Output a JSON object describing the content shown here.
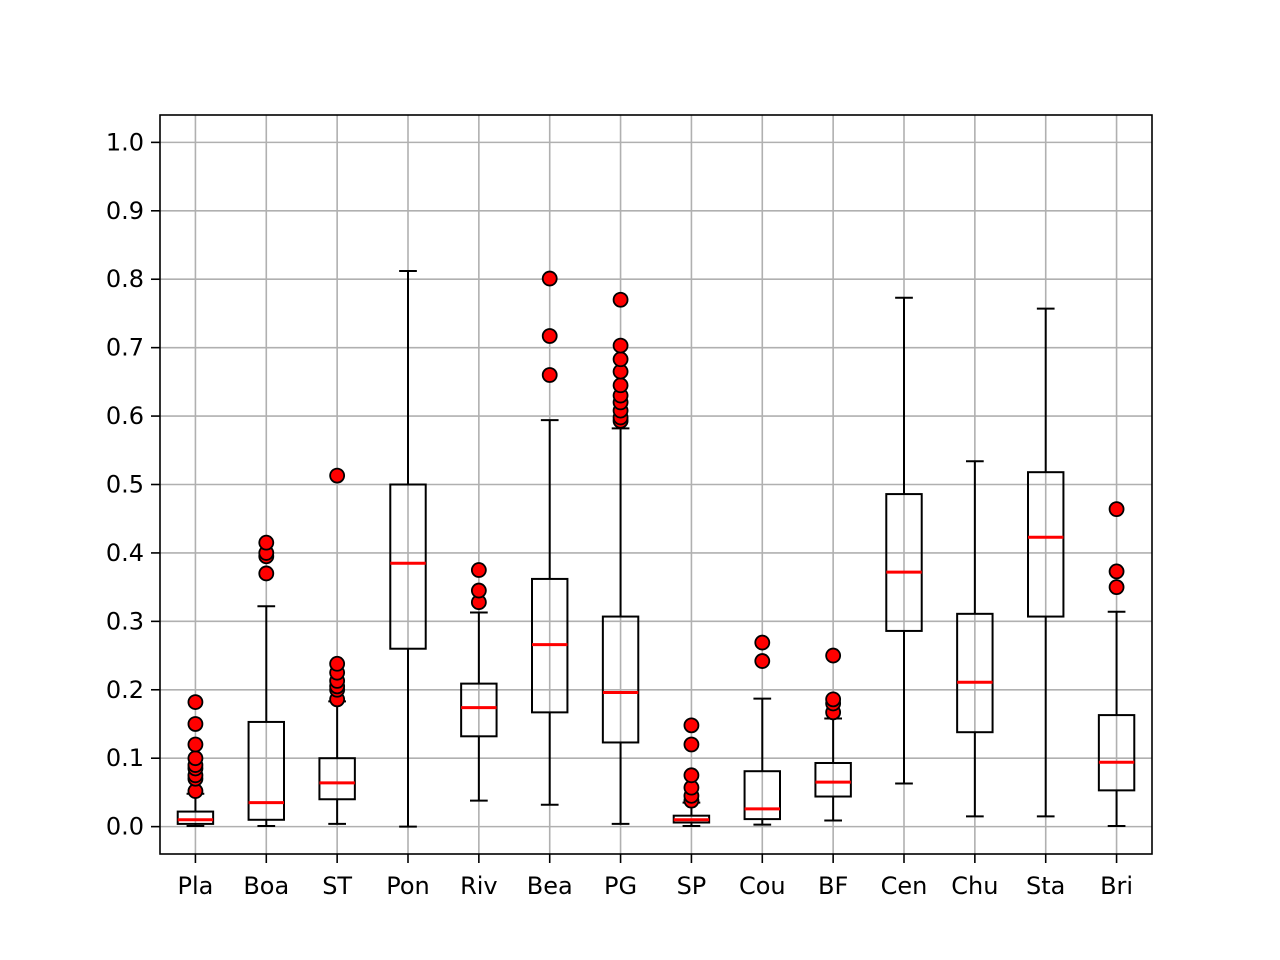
{
  "chart_data": {
    "type": "boxplot",
    "title": "",
    "xlabel": "",
    "ylabel": "",
    "ylim": [
      -0.04,
      1.04
    ],
    "grid": true,
    "yticks": [
      0.0,
      0.1,
      0.2,
      0.3,
      0.4,
      0.5,
      0.6,
      0.7,
      0.8,
      0.9,
      1.0
    ],
    "ytick_labels": [
      "0.0",
      "0.1",
      "0.2",
      "0.3",
      "0.4",
      "0.5",
      "0.6",
      "0.7",
      "0.8",
      "0.9",
      "1.0"
    ],
    "categories": [
      "Pla",
      "Boa",
      "ST",
      "Pon",
      "Riv",
      "Bea",
      "PG",
      "SP",
      "Cou",
      "BF",
      "Cen",
      "Chu",
      "Sta",
      "Bri"
    ],
    "boxes": [
      {
        "whisker_low": 0.001,
        "q1": 0.004,
        "median": 0.01,
        "q3": 0.022,
        "whisker_high": 0.048,
        "outliers": [
          0.052,
          0.07,
          0.075,
          0.085,
          0.09,
          0.1,
          0.12,
          0.15,
          0.182
        ]
      },
      {
        "whisker_low": 0.001,
        "q1": 0.01,
        "median": 0.035,
        "q3": 0.153,
        "whisker_high": 0.322,
        "outliers": [
          0.37,
          0.395,
          0.4,
          0.415
        ]
      },
      {
        "whisker_low": 0.004,
        "q1": 0.04,
        "median": 0.064,
        "q3": 0.1,
        "whisker_high": 0.183,
        "outliers": [
          0.186,
          0.2,
          0.205,
          0.213,
          0.225,
          0.238,
          0.513
        ]
      },
      {
        "whisker_low": 0.0,
        "q1": 0.26,
        "median": 0.385,
        "q3": 0.5,
        "whisker_high": 0.812,
        "outliers": []
      },
      {
        "whisker_low": 0.038,
        "q1": 0.132,
        "median": 0.174,
        "q3": 0.209,
        "whisker_high": 0.313,
        "outliers": [
          0.328,
          0.345,
          0.375
        ]
      },
      {
        "whisker_low": 0.032,
        "q1": 0.167,
        "median": 0.266,
        "q3": 0.362,
        "whisker_high": 0.594,
        "outliers": [
          0.66,
          0.717,
          0.801
        ]
      },
      {
        "whisker_low": 0.004,
        "q1": 0.123,
        "median": 0.196,
        "q3": 0.307,
        "whisker_high": 0.582,
        "outliers": [
          0.593,
          0.598,
          0.608,
          0.62,
          0.63,
          0.645,
          0.665,
          0.683,
          0.703,
          0.77
        ]
      },
      {
        "whisker_low": 0.001,
        "q1": 0.006,
        "median": 0.01,
        "q3": 0.016,
        "whisker_high": 0.035,
        "outliers": [
          0.038,
          0.045,
          0.057,
          0.075,
          0.12,
          0.148
        ]
      },
      {
        "whisker_low": 0.003,
        "q1": 0.011,
        "median": 0.026,
        "q3": 0.081,
        "whisker_high": 0.187,
        "outliers": [
          0.242,
          0.269
        ]
      },
      {
        "whisker_low": 0.009,
        "q1": 0.044,
        "median": 0.065,
        "q3": 0.093,
        "whisker_high": 0.158,
        "outliers": [
          0.167,
          0.18,
          0.186,
          0.25
        ]
      },
      {
        "whisker_low": 0.063,
        "q1": 0.286,
        "median": 0.372,
        "q3": 0.486,
        "whisker_high": 0.773,
        "outliers": []
      },
      {
        "whisker_low": 0.015,
        "q1": 0.138,
        "median": 0.211,
        "q3": 0.311,
        "whisker_high": 0.534,
        "outliers": []
      },
      {
        "whisker_low": 0.015,
        "q1": 0.307,
        "median": 0.423,
        "q3": 0.518,
        "whisker_high": 0.757,
        "outliers": []
      },
      {
        "whisker_low": 0.001,
        "q1": 0.053,
        "median": 0.094,
        "q3": 0.163,
        "whisker_high": 0.314,
        "outliers": [
          0.35,
          0.373,
          0.464
        ]
      }
    ],
    "colors": {
      "box": "#000000",
      "median": "#ff0000",
      "outlier_fill": "#ff0000",
      "outlier_edge": "#000000",
      "grid": "#b0b0b0"
    }
  }
}
